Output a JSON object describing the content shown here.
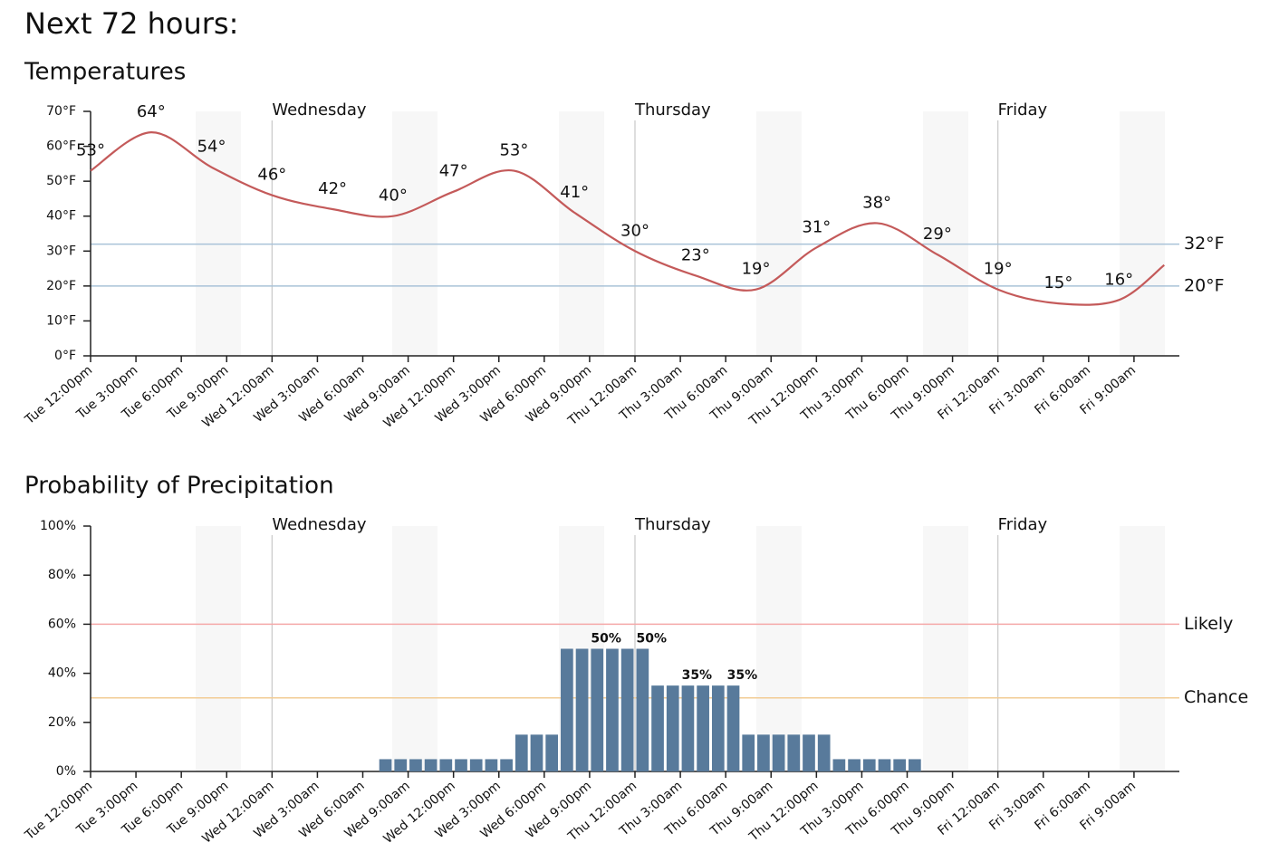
{
  "page_title": "Next 72 hours:",
  "chart_data": [
    {
      "type": "line",
      "title": "Temperatures",
      "color": "#c45a5a",
      "x": [
        0,
        4,
        8,
        12,
        16,
        20,
        24,
        28,
        32,
        36,
        40,
        44,
        48,
        52,
        56,
        60,
        64,
        68,
        71
      ],
      "values": [
        53,
        64,
        54,
        46,
        42,
        40,
        47,
        53,
        41,
        30,
        23,
        19,
        31,
        38,
        29,
        19,
        15,
        16,
        26
      ],
      "value_labels": [
        "53°",
        "64°",
        "54°",
        "46°",
        "42°",
        "40°",
        "47°",
        "53°",
        "41°",
        "30°",
        "23°",
        "19°",
        "31°",
        "38°",
        "29°",
        "19°",
        "15°",
        "16°",
        null
      ],
      "xlim": [
        0,
        72
      ],
      "xticks": [
        {
          "value": 0,
          "label": "Tue 12:00pm"
        },
        {
          "value": 3,
          "label": "Tue 3:00pm"
        },
        {
          "value": 6,
          "label": "Tue 6:00pm"
        },
        {
          "value": 9,
          "label": "Tue 9:00pm"
        },
        {
          "value": 12,
          "label": "Wed 12:00am"
        },
        {
          "value": 15,
          "label": "Wed 3:00am"
        },
        {
          "value": 18,
          "label": "Wed 6:00am"
        },
        {
          "value": 21,
          "label": "Wed 9:00am"
        },
        {
          "value": 24,
          "label": "Wed 12:00pm"
        },
        {
          "value": 27,
          "label": "Wed 3:00pm"
        },
        {
          "value": 30,
          "label": "Wed 6:00pm"
        },
        {
          "value": 33,
          "label": "Wed 9:00pm"
        },
        {
          "value": 36,
          "label": "Thu 12:00am"
        },
        {
          "value": 39,
          "label": "Thu 3:00am"
        },
        {
          "value": 42,
          "label": "Thu 6:00am"
        },
        {
          "value": 45,
          "label": "Thu 9:00am"
        },
        {
          "value": 48,
          "label": "Thu 12:00pm"
        },
        {
          "value": 51,
          "label": "Thu 3:00pm"
        },
        {
          "value": 54,
          "label": "Thu 6:00pm"
        },
        {
          "value": 57,
          "label": "Thu 9:00pm"
        },
        {
          "value": 60,
          "label": "Fri 12:00am"
        },
        {
          "value": 63,
          "label": "Fri 3:00am"
        },
        {
          "value": 66,
          "label": "Fri 6:00am"
        },
        {
          "value": 69,
          "label": "Fri 9:00am"
        }
      ],
      "ylim": [
        0,
        70
      ],
      "yticks": [
        {
          "value": 0,
          "label": "0°F"
        },
        {
          "value": 10,
          "label": "10°F"
        },
        {
          "value": 20,
          "label": "20°F"
        },
        {
          "value": 30,
          "label": "30°F"
        },
        {
          "value": 40,
          "label": "40°F"
        },
        {
          "value": 50,
          "label": "50°F"
        },
        {
          "value": 60,
          "label": "60°F"
        },
        {
          "value": 70,
          "label": "70°F"
        }
      ],
      "day_markers": [
        {
          "value": 12,
          "label": "Wednesday"
        },
        {
          "value": 36,
          "label": "Thursday"
        },
        {
          "value": 60,
          "label": "Friday"
        }
      ],
      "reference_lines": [
        {
          "value": 32,
          "label": "32°F",
          "color": "#a9c2d8",
          "label_color": "#2c4a60"
        },
        {
          "value": 20,
          "label": "20°F",
          "color": "#a9c2d8",
          "label_color": "#2c4a60"
        }
      ]
    },
    {
      "type": "bar",
      "title": "Probability of Precipitation",
      "color": "#587a9b",
      "x": [
        19,
        20,
        21,
        22,
        23,
        24,
        25,
        26,
        27,
        28,
        29,
        30,
        31,
        32,
        33,
        34,
        35,
        36,
        37,
        38,
        39,
        40,
        41,
        42,
        43,
        44,
        45,
        46,
        47,
        48,
        49,
        50,
        51,
        52,
        53,
        54
      ],
      "values": [
        5,
        5,
        5,
        5,
        5,
        5,
        5,
        5,
        5,
        15,
        15,
        15,
        50,
        50,
        50,
        50,
        50,
        50,
        35,
        35,
        35,
        35,
        35,
        35,
        15,
        15,
        15,
        15,
        15,
        15,
        5,
        5,
        5,
        5,
        5,
        5
      ],
      "value_labels": [
        null,
        null,
        null,
        null,
        null,
        null,
        null,
        null,
        null,
        null,
        null,
        null,
        null,
        null,
        "50%",
        null,
        null,
        "50%",
        null,
        null,
        "35%",
        null,
        null,
        "35%",
        null,
        null,
        null,
        null,
        null,
        null,
        null,
        null,
        null,
        null,
        null,
        null
      ],
      "xlim": [
        0,
        72
      ],
      "xticks": [
        {
          "value": 0,
          "label": "Tue 12:00pm"
        },
        {
          "value": 3,
          "label": "Tue 3:00pm"
        },
        {
          "value": 6,
          "label": "Tue 6:00pm"
        },
        {
          "value": 9,
          "label": "Tue 9:00pm"
        },
        {
          "value": 12,
          "label": "Wed 12:00am"
        },
        {
          "value": 15,
          "label": "Wed 3:00am"
        },
        {
          "value": 18,
          "label": "Wed 6:00am"
        },
        {
          "value": 21,
          "label": "Wed 9:00am"
        },
        {
          "value": 24,
          "label": "Wed 12:00pm"
        },
        {
          "value": 27,
          "label": "Wed 3:00pm"
        },
        {
          "value": 30,
          "label": "Wed 6:00pm"
        },
        {
          "value": 33,
          "label": "Wed 9:00pm"
        },
        {
          "value": 36,
          "label": "Thu 12:00am"
        },
        {
          "value": 39,
          "label": "Thu 3:00am"
        },
        {
          "value": 42,
          "label": "Thu 6:00am"
        },
        {
          "value": 45,
          "label": "Thu 9:00am"
        },
        {
          "value": 48,
          "label": "Thu 12:00pm"
        },
        {
          "value": 51,
          "label": "Thu 3:00pm"
        },
        {
          "value": 54,
          "label": "Thu 6:00pm"
        },
        {
          "value": 57,
          "label": "Thu 9:00pm"
        },
        {
          "value": 60,
          "label": "Fri 12:00am"
        },
        {
          "value": 63,
          "label": "Fri 3:00am"
        },
        {
          "value": 66,
          "label": "Fri 6:00am"
        },
        {
          "value": 69,
          "label": "Fri 9:00am"
        }
      ],
      "ylim": [
        0,
        100
      ],
      "yticks": [
        {
          "value": 0,
          "label": "0%"
        },
        {
          "value": 20,
          "label": "20%"
        },
        {
          "value": 40,
          "label": "40%"
        },
        {
          "value": 60,
          "label": "60%"
        },
        {
          "value": 80,
          "label": "80%"
        },
        {
          "value": 100,
          "label": "100%"
        }
      ],
      "day_markers": [
        {
          "value": 12,
          "label": "Wednesday"
        },
        {
          "value": 36,
          "label": "Thursday"
        },
        {
          "value": 60,
          "label": "Friday"
        }
      ],
      "reference_lines": [
        {
          "value": 60,
          "label": "Likely",
          "color": "#f5a9a9",
          "label_color": "#4a1010"
        },
        {
          "value": 30,
          "label": "Chance",
          "color": "#f2cc95",
          "label_color": "#3a2a00"
        }
      ]
    }
  ]
}
